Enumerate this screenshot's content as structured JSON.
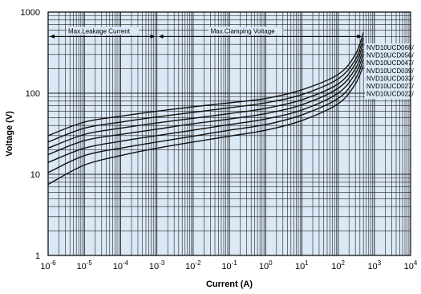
{
  "chart_data": {
    "type": "line",
    "title": "",
    "xlabel": "Current (A)",
    "ylabel": "Voltage (V)",
    "x_scale": "log",
    "y_scale": "log",
    "xlim": [
      1e-06,
      10000
    ],
    "ylim": [
      1,
      1000
    ],
    "grid": true,
    "plot_background": "#dbe8f6",
    "line_color": "#111111",
    "x_ticks": [
      {
        "value": 1e-06,
        "base": "10",
        "exp": "-6"
      },
      {
        "value": 1e-05,
        "base": "10",
        "exp": "-5"
      },
      {
        "value": 0.0001,
        "base": "10",
        "exp": "-4"
      },
      {
        "value": 0.001,
        "base": "10",
        "exp": "-3"
      },
      {
        "value": 0.01,
        "base": "10",
        "exp": "-2"
      },
      {
        "value": 0.1,
        "base": "10",
        "exp": "-1"
      },
      {
        "value": 1,
        "base": "10",
        "exp": "0"
      },
      {
        "value": 10,
        "base": "10",
        "exp": "1"
      },
      {
        "value": 100,
        "base": "10",
        "exp": "2"
      },
      {
        "value": 1000,
        "base": "10",
        "exp": "3"
      },
      {
        "value": 10000,
        "base": "10",
        "exp": "4"
      }
    ],
    "y_ticks": [
      {
        "value": 1,
        "label": "1"
      },
      {
        "value": 10,
        "label": "10"
      },
      {
        "value": 100,
        "label": "100"
      },
      {
        "value": 1000,
        "label": "1000"
      }
    ],
    "annotations": [
      {
        "text": "Max.Leakage Current",
        "x_start": 1e-06,
        "x_end": 0.001,
        "y": 500
      },
      {
        "text": "Max.Clamping Voltage",
        "x_start": 0.001,
        "x_end": 500,
        "y": 500
      }
    ],
    "legend_position": "right",
    "series": [
      {
        "name": "NVD10UCD068/",
        "x": [
          1e-06,
          1e-05,
          0.0001,
          0.001,
          0.01,
          0.1,
          1,
          10,
          100,
          300,
          500
        ],
        "y": [
          30,
          44,
          52,
          60,
          68,
          76,
          86,
          110,
          170,
          300,
          560
        ]
      },
      {
        "name": "NVD10UCD056/",
        "x": [
          1e-06,
          1e-05,
          0.0001,
          0.001,
          0.01,
          0.1,
          1,
          10,
          100,
          300,
          500
        ],
        "y": [
          25,
          37,
          44,
          51,
          58,
          66,
          76,
          96,
          150,
          260,
          480
        ]
      },
      {
        "name": "NVD10UCD047/",
        "x": [
          1e-06,
          1e-05,
          0.0001,
          0.001,
          0.01,
          0.1,
          1,
          10,
          100,
          300,
          500
        ],
        "y": [
          21,
          31,
          37,
          43,
          49,
          56,
          65,
          83,
          130,
          230,
          410
        ]
      },
      {
        "name": "NVD10UCD039/",
        "x": [
          1e-06,
          1e-05,
          0.0001,
          0.001,
          0.01,
          0.1,
          1,
          10,
          100,
          300,
          500
        ],
        "y": [
          17.5,
          26,
          31,
          36,
          42,
          48,
          56,
          72,
          115,
          200,
          350
        ]
      },
      {
        "name": "NVD10UCD033/",
        "x": [
          1e-06,
          1e-05,
          0.0001,
          0.001,
          0.01,
          0.1,
          1,
          10,
          100,
          300,
          500
        ],
        "y": [
          14,
          21,
          25.5,
          30,
          35,
          41,
          48,
          62,
          100,
          175,
          300
        ]
      },
      {
        "name": "NVD10UCD027/",
        "x": [
          1e-06,
          1e-05,
          0.0001,
          0.001,
          0.01,
          0.1,
          1,
          10,
          100,
          300,
          500
        ],
        "y": [
          10.5,
          17,
          21,
          25,
          29.5,
          35,
          41,
          54,
          86,
          150,
          260
        ]
      },
      {
        "name": "NVD10UCD022/",
        "x": [
          1e-06,
          1e-05,
          0.0001,
          0.001,
          0.01,
          0.1,
          1,
          10,
          100,
          300,
          500
        ],
        "y": [
          7.5,
          13,
          17,
          21,
          25,
          29.5,
          35,
          46,
          74,
          130,
          220
        ]
      }
    ]
  }
}
